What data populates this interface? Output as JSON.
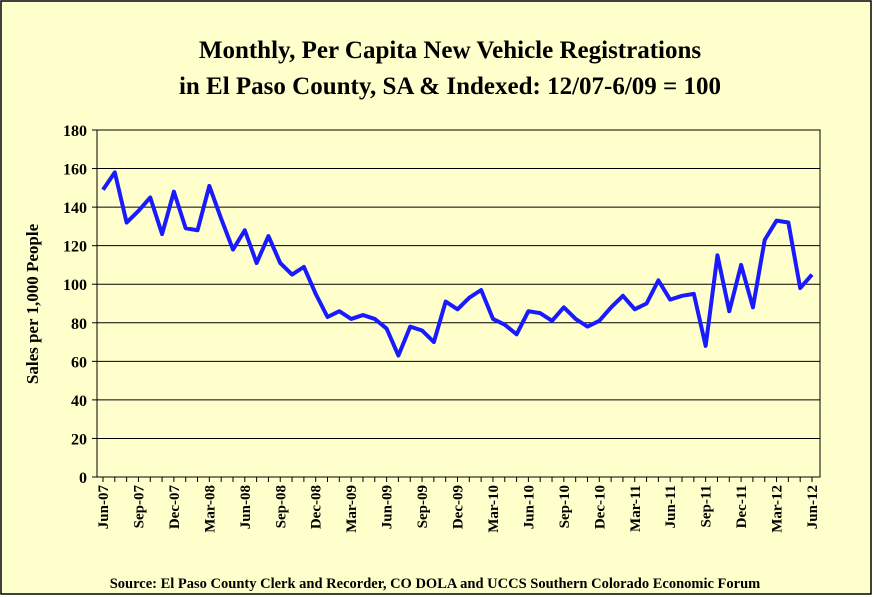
{
  "chart_data": {
    "type": "line",
    "title": [
      "Monthly, Per Capita New Vehicle Registrations",
      "in El Paso County, SA & Indexed:  12/07-6/09 = 100"
    ],
    "y_label": "Sales per 1,000 People",
    "source": "Source: El Paso County  Clerk and Recorder, CO  DOLA and UCCS  Southern Colorado Economic Forum",
    "categories": [
      "Jun-07",
      null,
      null,
      "Sep-07",
      null,
      null,
      "Dec-07",
      null,
      null,
      "Mar-08",
      null,
      null,
      "Jun-08",
      null,
      null,
      "Sep-08",
      null,
      null,
      "Dec-08",
      null,
      null,
      "Mar-09",
      null,
      null,
      "Jun-09",
      null,
      null,
      "Sep-09",
      null,
      null,
      "Dec-09",
      null,
      null,
      "Mar-10",
      null,
      null,
      "Jun-10",
      null,
      null,
      "Sep-10",
      null,
      null,
      "Dec-10",
      null,
      null,
      "Mar-11",
      null,
      null,
      "Jun-11",
      null,
      null,
      "Sep-11",
      null,
      null,
      "Dec-11",
      null,
      null,
      "Mar-12",
      null,
      null,
      "Jun-12"
    ],
    "series": [
      {
        "color": "#1a1aff",
        "values": [
          149,
          158,
          132,
          138,
          145,
          126,
          148,
          129,
          128,
          151,
          134,
          118,
          128,
          111,
          125,
          111,
          105,
          109,
          95,
          83,
          86,
          82,
          84,
          82,
          77,
          63,
          78,
          76,
          70,
          91,
          87,
          93,
          97,
          82,
          79,
          74,
          86,
          85,
          81,
          88,
          82,
          78,
          81,
          88,
          94,
          87,
          90,
          102,
          92,
          94,
          95,
          68,
          115,
          86,
          110,
          88,
          123,
          133,
          132,
          98,
          105
        ]
      }
    ],
    "ylim": [
      0,
      180
    ],
    "yticks": [
      0,
      20,
      40,
      60,
      80,
      100,
      120,
      140,
      160,
      180
    ],
    "grid": true,
    "background": "#ffffcc"
  }
}
